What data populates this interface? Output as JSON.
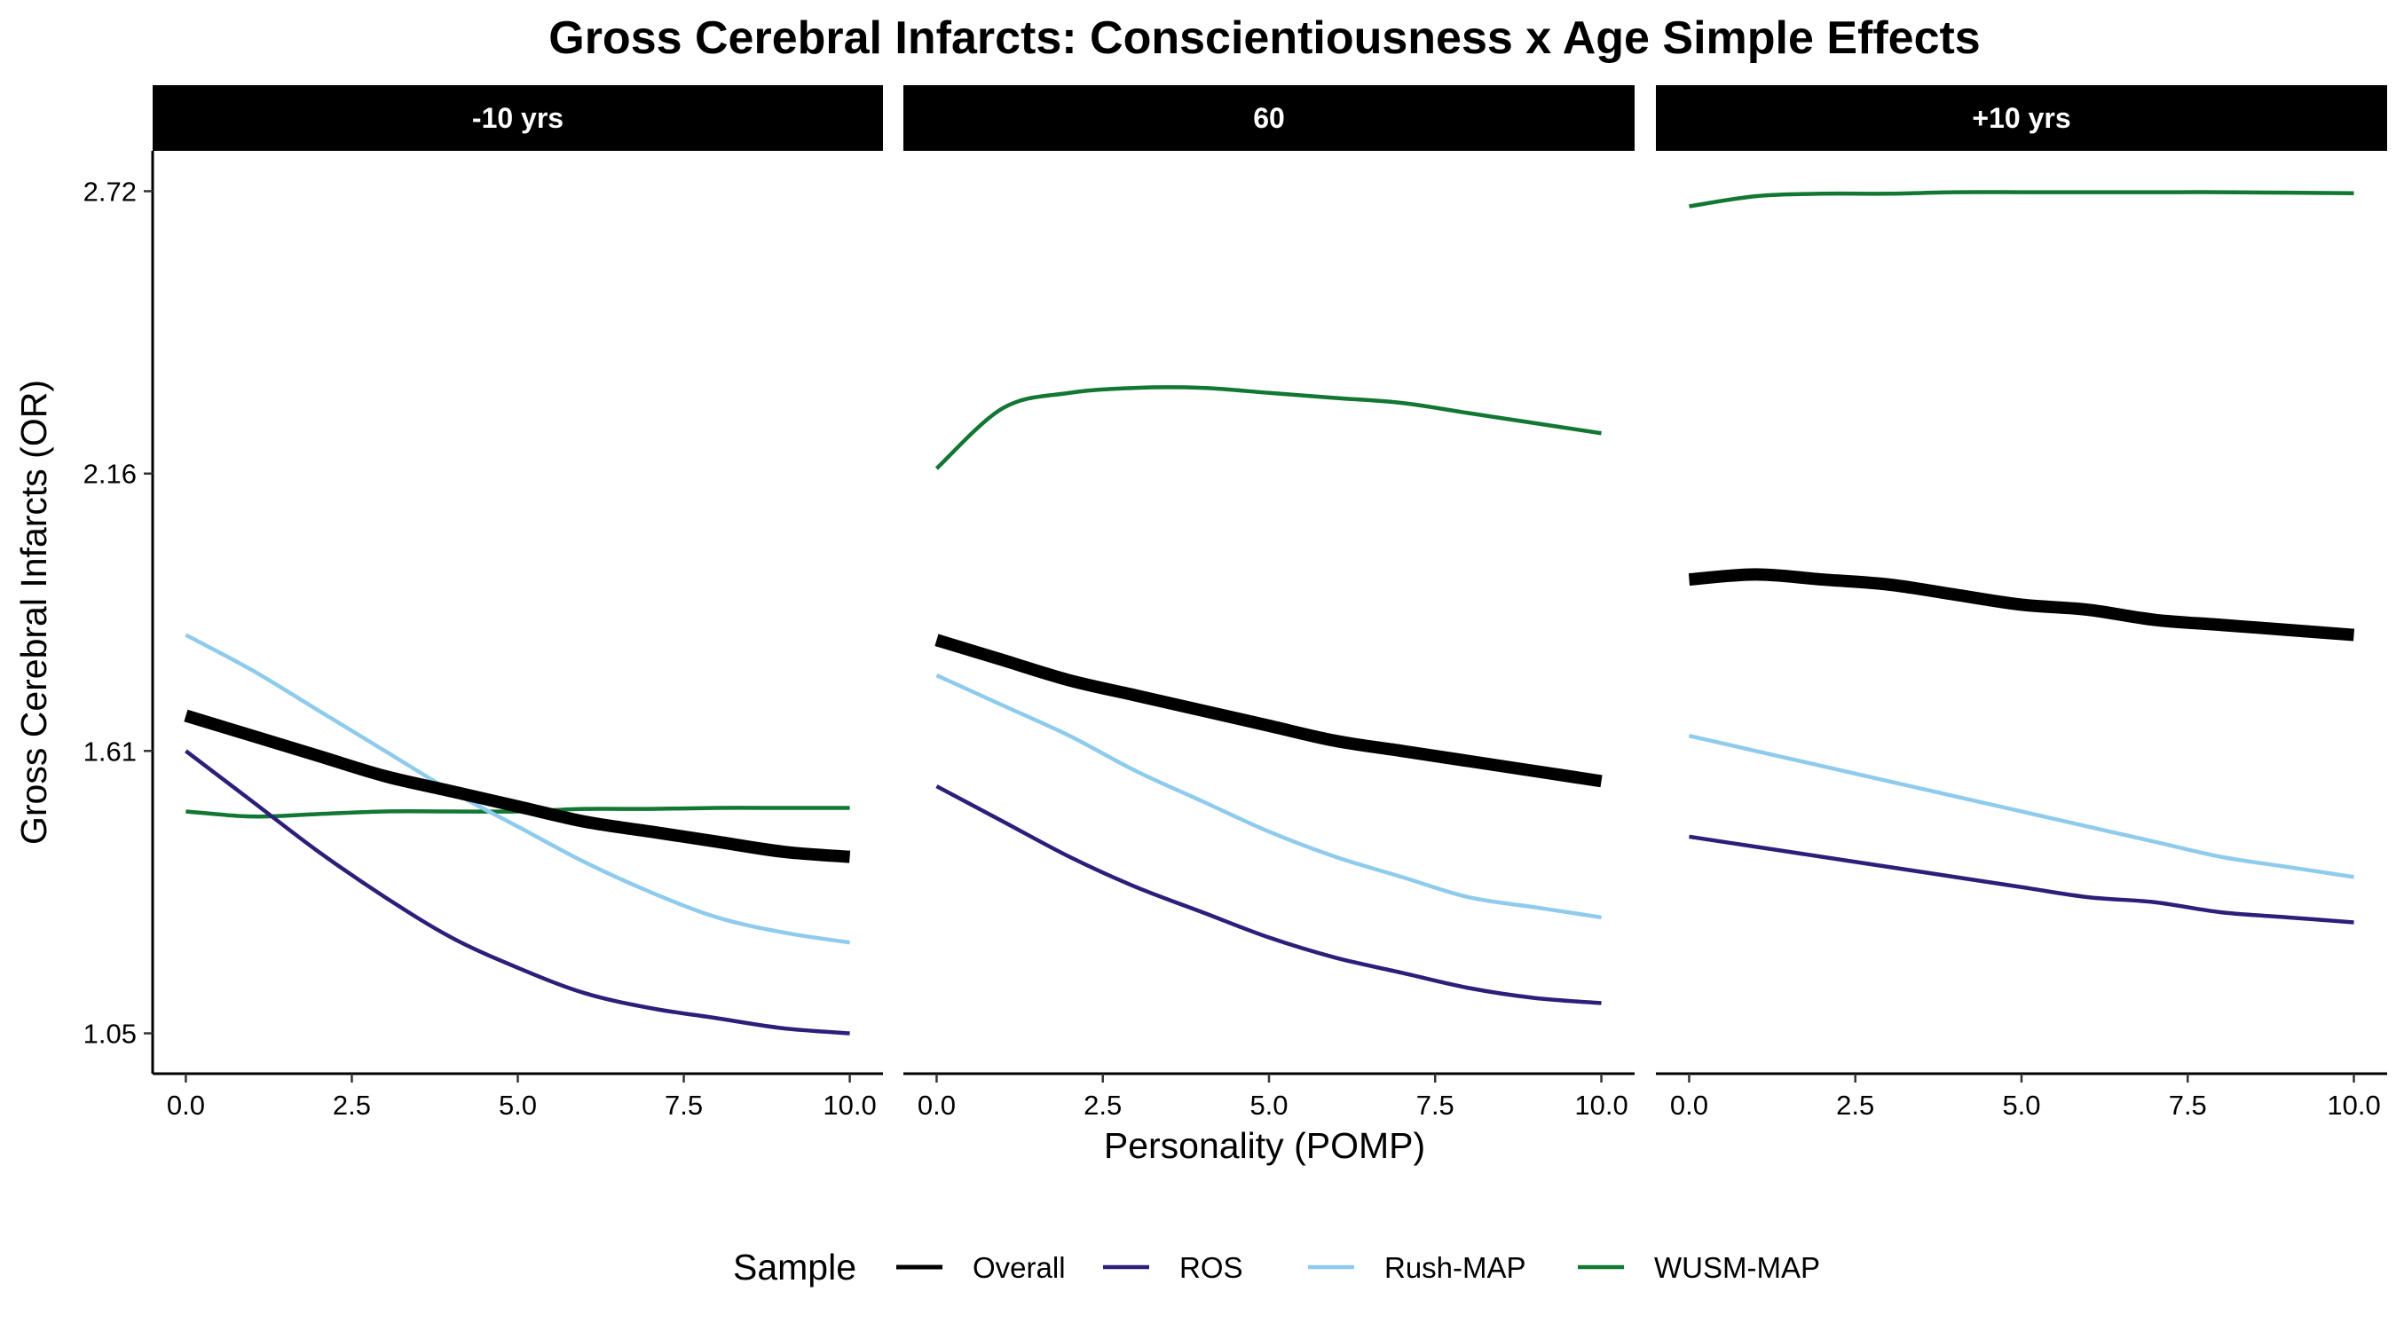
{
  "chart_data": {
    "type": "line",
    "title": "Gross Cerebral Infarcts: Conscientiousness x Age Simple Effects",
    "xlabel": "Personality (POMP)",
    "ylabel": "Gross Cerebral Infarcts (OR)",
    "xlim": [
      -0.5,
      10.5
    ],
    "ylim": [
      0.97,
      2.8
    ],
    "x_ticks": [
      "0.0",
      "2.5",
      "5.0",
      "7.5",
      "10.0"
    ],
    "x_tick_values": [
      0,
      2.5,
      5,
      7.5,
      10
    ],
    "y_ticks": [
      "1.05",
      "1.61",
      "2.16",
      "2.72"
    ],
    "y_tick_values": [
      1.05,
      1.61,
      2.16,
      2.72
    ],
    "grid": false,
    "legend": {
      "title": "Sample",
      "position": "bottom",
      "entries": [
        "Overall",
        "ROS",
        "Rush-MAP",
        "WUSM-MAP"
      ]
    },
    "colors": {
      "Overall": "#000000",
      "ROS": "#2d1e7a",
      "Rush-MAP": "#8ecbec",
      "WUSM-MAP": "#117733"
    },
    "facets": [
      {
        "label": "-10 yrs",
        "x": [
          0,
          1,
          2,
          3,
          4,
          5,
          6,
          7,
          8,
          9,
          10
        ],
        "series": [
          {
            "name": "Overall",
            "values": [
              1.68,
              1.64,
              1.6,
              1.56,
              1.53,
              1.5,
              1.47,
              1.45,
              1.43,
              1.41,
              1.4
            ]
          },
          {
            "name": "ROS",
            "values": [
              1.61,
              1.51,
              1.41,
              1.32,
              1.24,
              1.18,
              1.13,
              1.1,
              1.08,
              1.06,
              1.05
            ]
          },
          {
            "name": "Rush-MAP",
            "values": [
              1.84,
              1.77,
              1.69,
              1.61,
              1.53,
              1.46,
              1.39,
              1.33,
              1.28,
              1.25,
              1.23
            ]
          },
          {
            "name": "WUSM-MAP",
            "values": [
              1.49,
              1.48,
              1.485,
              1.49,
              1.49,
              1.49,
              1.495,
              1.495,
              1.497,
              1.497,
              1.497
            ]
          }
        ]
      },
      {
        "label": "60",
        "x": [
          0,
          1,
          2,
          3,
          4,
          5,
          6,
          7,
          8,
          9,
          10
        ],
        "series": [
          {
            "name": "Overall",
            "values": [
              1.83,
              1.79,
              1.75,
              1.72,
              1.69,
              1.66,
              1.63,
              1.61,
              1.59,
              1.57,
              1.55
            ]
          },
          {
            "name": "ROS",
            "values": [
              1.54,
              1.47,
              1.4,
              1.34,
              1.29,
              1.24,
              1.2,
              1.17,
              1.14,
              1.12,
              1.11
            ]
          },
          {
            "name": "Rush-MAP",
            "values": [
              1.76,
              1.7,
              1.64,
              1.57,
              1.51,
              1.45,
              1.4,
              1.36,
              1.32,
              1.3,
              1.28
            ]
          },
          {
            "name": "WUSM-MAP",
            "values": [
              2.17,
              2.29,
              2.32,
              2.33,
              2.33,
              2.32,
              2.31,
              2.3,
              2.28,
              2.26,
              2.24
            ]
          }
        ]
      },
      {
        "label": "+10 yrs",
        "x": [
          0,
          1,
          2,
          3,
          4,
          5,
          6,
          7,
          8,
          9,
          10
        ],
        "series": [
          {
            "name": "Overall",
            "values": [
              1.95,
              1.96,
              1.95,
              1.94,
              1.92,
              1.9,
              1.89,
              1.87,
              1.86,
              1.85,
              1.84
            ]
          },
          {
            "name": "ROS",
            "values": [
              1.44,
              1.42,
              1.4,
              1.38,
              1.36,
              1.34,
              1.32,
              1.31,
              1.29,
              1.28,
              1.27
            ]
          },
          {
            "name": "Rush-MAP",
            "values": [
              1.64,
              1.61,
              1.58,
              1.55,
              1.52,
              1.49,
              1.46,
              1.43,
              1.4,
              1.38,
              1.36
            ]
          },
          {
            "name": "WUSM-MAP",
            "values": [
              2.69,
              2.71,
              2.715,
              2.715,
              2.718,
              2.718,
              2.718,
              2.718,
              2.718,
              2.717,
              2.716
            ]
          }
        ]
      }
    ]
  }
}
